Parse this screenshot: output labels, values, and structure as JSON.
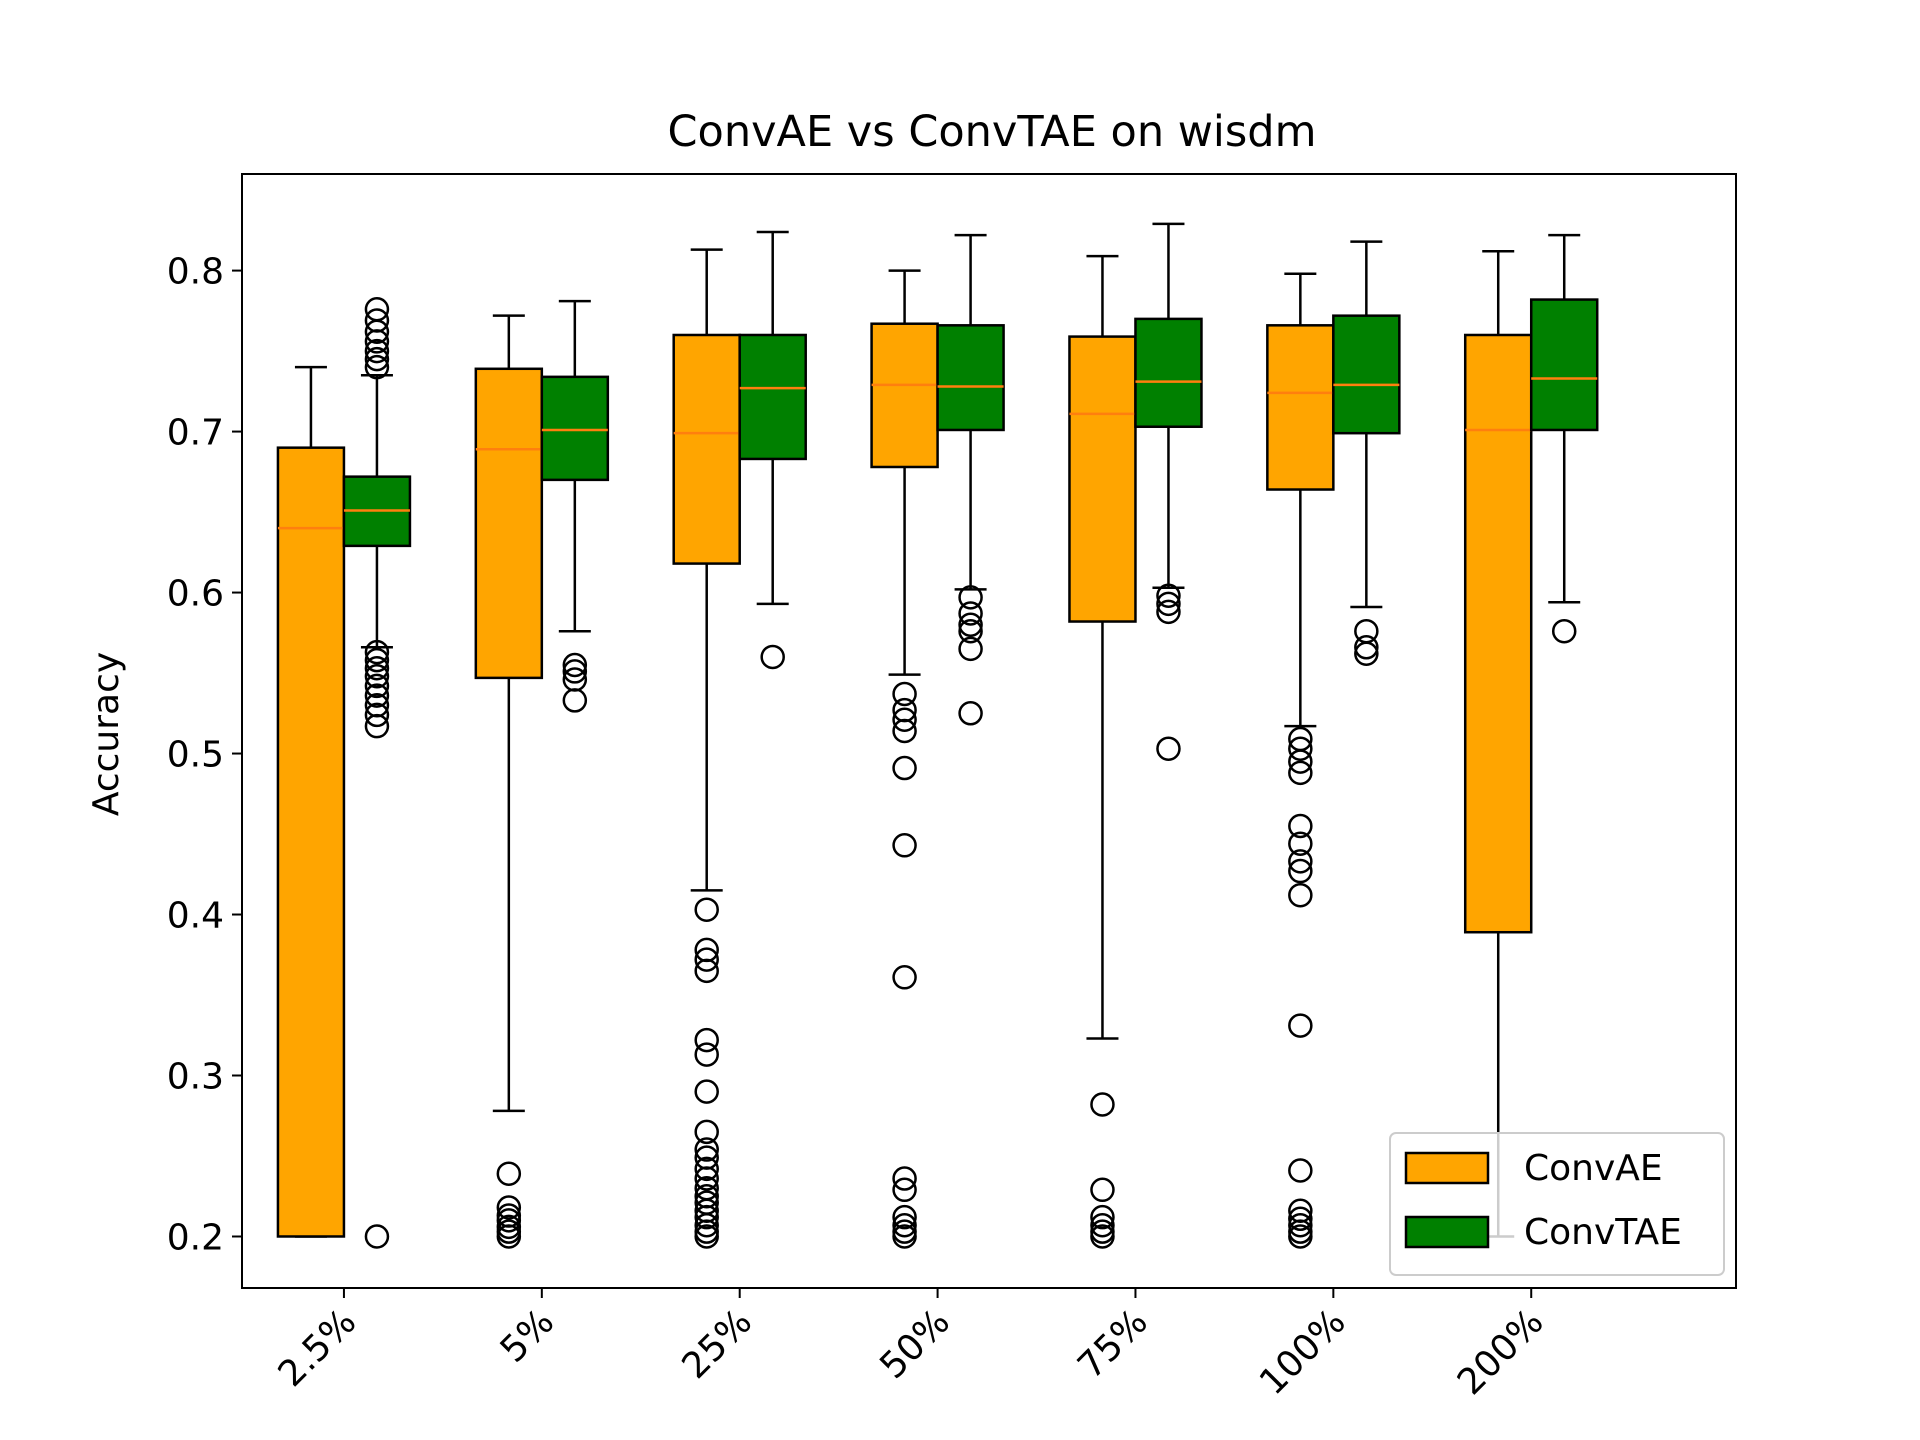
{
  "chart_data": {
    "type": "box",
    "title": "ConvAE vs ConvTAE on wisdm",
    "xlabel": "",
    "ylabel": "Accuracy",
    "ylim": [
      0.168,
      0.86
    ],
    "yticks": [
      0.2,
      0.3,
      0.4,
      0.5,
      0.6,
      0.7,
      0.8
    ],
    "ytick_labels": [
      "0.2",
      "0.3",
      "0.4",
      "0.5",
      "0.6",
      "0.7",
      "0.8"
    ],
    "categories": [
      "2.5%",
      "5%",
      "25%",
      "50%",
      "75%",
      "100%",
      "200%"
    ],
    "legend": {
      "placement": "lower right",
      "entries": [
        "ConvAE",
        "ConvTAE"
      ]
    },
    "series": [
      {
        "name": "ConvAE",
        "color": "#ffa500",
        "boxes": [
          {
            "whislo": 0.2,
            "q1": 0.2,
            "med": 0.64,
            "q3": 0.69,
            "whishi": 0.74,
            "fliers": []
          },
          {
            "whislo": 0.278,
            "q1": 0.547,
            "med": 0.689,
            "q3": 0.739,
            "whishi": 0.772,
            "fliers": [
              0.2,
              0.203,
              0.206,
              0.21,
              0.213,
              0.218,
              0.239
            ]
          },
          {
            "whislo": 0.415,
            "q1": 0.618,
            "med": 0.699,
            "q3": 0.76,
            "whishi": 0.813,
            "fliers": [
              0.2,
              0.203,
              0.207,
              0.212,
              0.216,
              0.221,
              0.225,
              0.23,
              0.236,
              0.242,
              0.249,
              0.254,
              0.265,
              0.29,
              0.313,
              0.322,
              0.365,
              0.372,
              0.378,
              0.403
            ]
          },
          {
            "whislo": 0.549,
            "q1": 0.678,
            "med": 0.729,
            "q3": 0.767,
            "whishi": 0.8,
            "fliers": [
              0.2,
              0.203,
              0.207,
              0.212,
              0.229,
              0.236,
              0.361,
              0.443,
              0.491,
              0.514,
              0.521,
              0.527,
              0.537
            ]
          },
          {
            "whislo": 0.323,
            "q1": 0.582,
            "med": 0.711,
            "q3": 0.759,
            "whishi": 0.809,
            "fliers": [
              0.2,
              0.203,
              0.207,
              0.212,
              0.229,
              0.282
            ]
          },
          {
            "whislo": 0.517,
            "q1": 0.664,
            "med": 0.724,
            "q3": 0.766,
            "whishi": 0.798,
            "fliers": [
              0.2,
              0.203,
              0.207,
              0.211,
              0.216,
              0.241,
              0.331,
              0.412,
              0.427,
              0.433,
              0.444,
              0.455,
              0.488,
              0.495,
              0.503,
              0.509
            ]
          },
          {
            "whislo": 0.2,
            "q1": 0.389,
            "med": 0.701,
            "q3": 0.76,
            "whishi": 0.812,
            "fliers": []
          }
        ]
      },
      {
        "name": "ConvTAE",
        "color": "#008000",
        "boxes": [
          {
            "whislo": 0.566,
            "q1": 0.629,
            "med": 0.651,
            "q3": 0.672,
            "whishi": 0.735,
            "fliers": [
              0.2,
              0.517,
              0.524,
              0.53,
              0.536,
              0.542,
              0.548,
              0.553,
              0.558,
              0.563,
              0.74,
              0.745,
              0.75,
              0.756,
              0.762,
              0.769,
              0.776
            ]
          },
          {
            "whislo": 0.576,
            "q1": 0.67,
            "med": 0.701,
            "q3": 0.734,
            "whishi": 0.781,
            "fliers": [
              0.533,
              0.546,
              0.551,
              0.555
            ]
          },
          {
            "whislo": 0.593,
            "q1": 0.683,
            "med": 0.727,
            "q3": 0.76,
            "whishi": 0.824,
            "fliers": [
              0.56
            ]
          },
          {
            "whislo": 0.602,
            "q1": 0.701,
            "med": 0.728,
            "q3": 0.766,
            "whishi": 0.822,
            "fliers": [
              0.525,
              0.565,
              0.576,
              0.58,
              0.587,
              0.597
            ]
          },
          {
            "whislo": 0.603,
            "q1": 0.703,
            "med": 0.731,
            "q3": 0.77,
            "whishi": 0.829,
            "fliers": [
              0.503,
              0.588,
              0.593,
              0.598
            ]
          },
          {
            "whislo": 0.591,
            "q1": 0.699,
            "med": 0.729,
            "q3": 0.772,
            "whishi": 0.818,
            "fliers": [
              0.562,
              0.566,
              0.576
            ]
          },
          {
            "whislo": 0.594,
            "q1": 0.701,
            "med": 0.733,
            "q3": 0.782,
            "whishi": 0.822,
            "fliers": [
              0.576
            ]
          }
        ]
      }
    ]
  }
}
